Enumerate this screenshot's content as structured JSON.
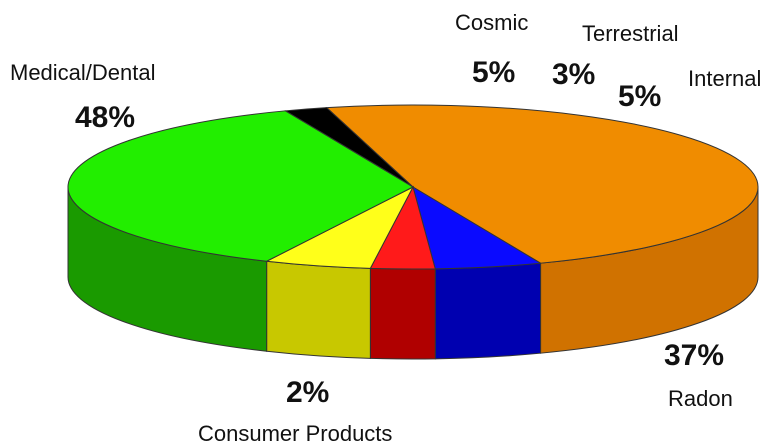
{
  "chart_data": {
    "type": "pie",
    "style": "3d",
    "unit": "%",
    "slices": [
      {
        "name": "Medical/Dental",
        "value": 48,
        "label": "48%",
        "color": "#f08c00",
        "side_color": "#d07200"
      },
      {
        "name": "Cosmic",
        "value": 5,
        "label": "5%",
        "color": "#0a0aff",
        "side_color": "#0000b0"
      },
      {
        "name": "Terrestrial",
        "value": 3,
        "label": "3%",
        "color": "#ff1a1a",
        "side_color": "#b00000"
      },
      {
        "name": "Internal",
        "value": 5,
        "label": "5%",
        "color": "#ffff1a",
        "side_color": "#c8c800"
      },
      {
        "name": "Radon",
        "value": 37,
        "label": "37%",
        "color": "#22ee00",
        "side_color": "#1a9a00"
      },
      {
        "name": "Consumer Products",
        "value": 2,
        "label": "2%",
        "color": "#000000",
        "side_color": "#000000"
      }
    ]
  }
}
